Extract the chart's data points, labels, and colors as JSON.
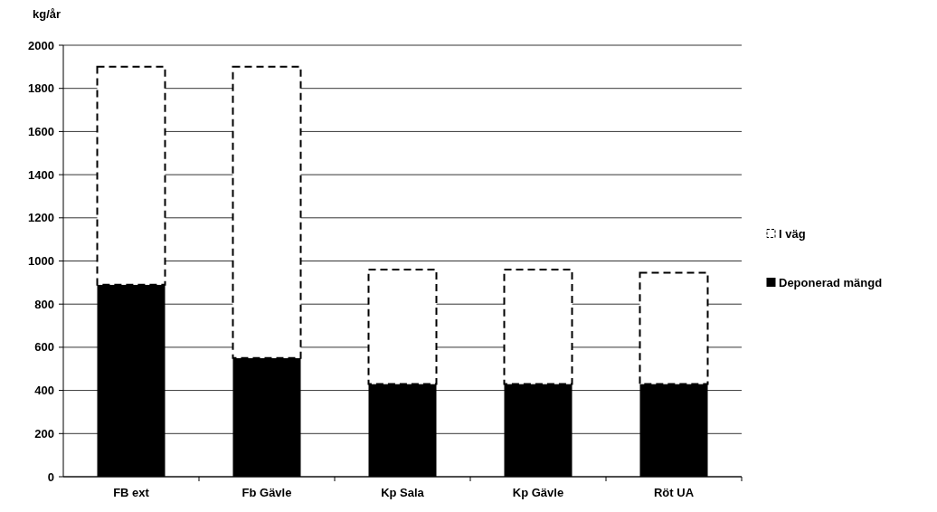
{
  "chart_data": {
    "type": "bar",
    "ylabel": "kg/år",
    "categories": [
      "FB ext",
      "Fb Gävle",
      "Kp Sala",
      "Kp Gävle",
      "Röt UA"
    ],
    "series": [
      {
        "name": "Deponerad mängd",
        "color": "#000000",
        "values": [
          890,
          550,
          430,
          430,
          430
        ]
      },
      {
        "name": "I väg",
        "color": "#ffffff",
        "line_style": "dashed",
        "values": [
          1010,
          1350,
          530,
          530,
          515
        ]
      }
    ],
    "stacked": true,
    "ylim": [
      0,
      2000
    ],
    "yticks": [
      0,
      200,
      400,
      600,
      800,
      1000,
      1200,
      1400,
      1600,
      1800,
      2000
    ],
    "grid": "y",
    "legend": "right"
  }
}
